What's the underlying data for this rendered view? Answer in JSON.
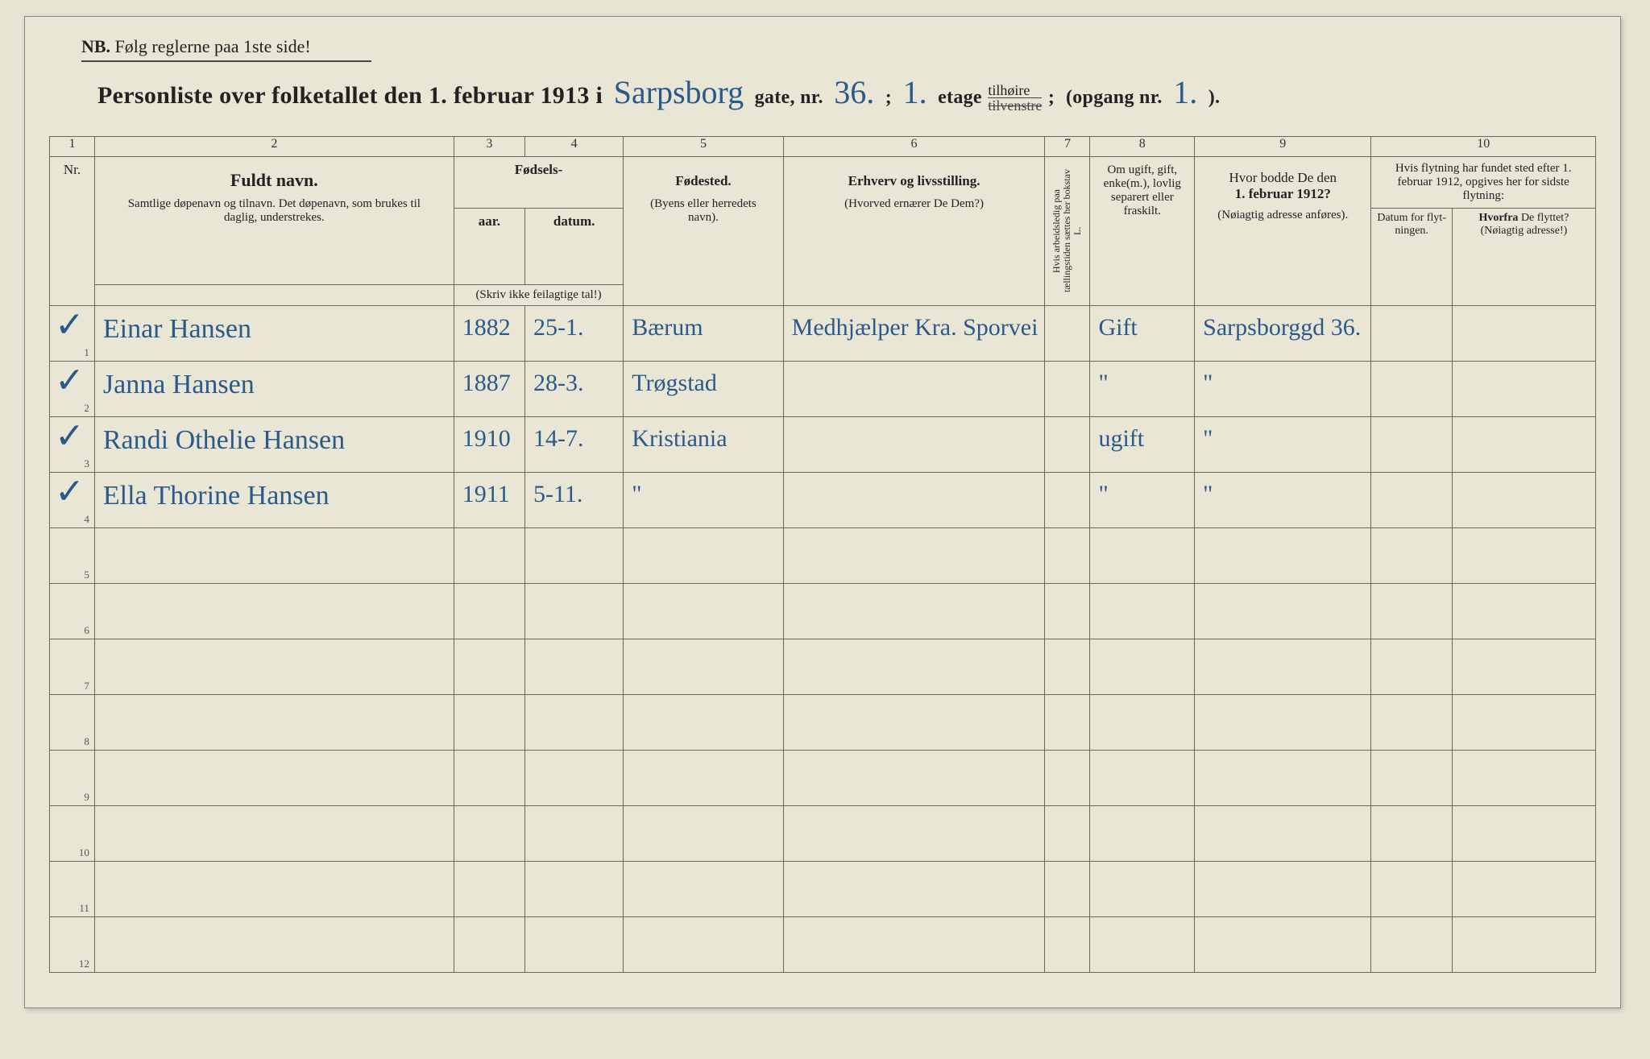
{
  "paper_bg": "#eae6d6",
  "ink": "#333",
  "hand_color": "#2a5a8a",
  "nb_text": "NB.  Følg reglerne paa 1ste side!",
  "header": {
    "lead": "Personliste over folketallet den 1. februar 1913 i",
    "street": "Sarpsborg",
    "gate_lbl": "gate, nr.",
    "gate_nr": "36.",
    "semicolon": ";",
    "etage_nr": "1.",
    "etage_lbl": "etage",
    "tilhore_top": "tilhøire",
    "tilhore_bot": "tilvenstre",
    "opgang_lbl": "(opgang nr.",
    "opgang_nr": "1.",
    "close": ")."
  },
  "colnums": [
    "1",
    "2",
    "3",
    "4",
    "5",
    "6",
    "7",
    "8",
    "9",
    "10"
  ],
  "heads": {
    "nr": "Nr.",
    "navn_title": "Fuldt navn.",
    "navn_sub": "Samtlige døpenavn og tilnavn. Det døpenavn, som brukes til daglig, understrekes.",
    "fodsels": "Fødsels-",
    "aar": "aar.",
    "datum": "datum.",
    "fods_note": "(Skriv ikke feilagtige tal!)",
    "fodested": "Fødested.",
    "fodested_sub": "(Byens eller herredets navn).",
    "erhverv": "Erhverv og livsstilling.",
    "erhverv_sub": "(Hvorved ernærer De Dem?)",
    "col7": "Hvis arbeidsledig paa tællingstiden sættes her bokstav L.",
    "civil": "Om ugift, gift, enke(m.), lovlig separert eller fraskilt.",
    "bodde": "Hvor bodde De den 1. februar 1912?",
    "bodde_sub": "(Nøiagtig adresse anføres).",
    "flyt": "Hvis flytning har fundet sted efter 1. februar 1912, opgives her for sidste flytning:",
    "flyt_a": "Datum for flyt-ningen.",
    "flyt_b": "Hvorfra De flyttet? (Nøiagtig adresse!)"
  },
  "rows": [
    {
      "nr": "1",
      "check": "✓",
      "navn": "Einar Hansen",
      "aar": "1882",
      "datum": "25-1.",
      "sted": "Bærum",
      "erhverv": "Medhjælper Kra. Sporvei",
      "civil": "Gift",
      "bodde": "Sarpsborggd 36."
    },
    {
      "nr": "2",
      "check": "✓",
      "navn": "Janna Hansen",
      "aar": "1887",
      "datum": "28-3.",
      "sted": "Trøgstad",
      "erhverv": "",
      "civil": "\"",
      "bodde": "\""
    },
    {
      "nr": "3",
      "check": "✓",
      "navn": "Randi Othelie Hansen",
      "aar": "1910",
      "datum": "14-7.",
      "sted": "Kristiania",
      "erhverv": "",
      "civil": "ugift",
      "bodde": "\""
    },
    {
      "nr": "4",
      "check": "✓",
      "navn": "Ella Thorine Hansen",
      "aar": "1911",
      "datum": "5-11.",
      "sted": "\"",
      "erhverv": "",
      "civil": "\"",
      "bodde": "\""
    },
    {
      "nr": "5"
    },
    {
      "nr": "6"
    },
    {
      "nr": "7"
    },
    {
      "nr": "8"
    },
    {
      "nr": "9"
    },
    {
      "nr": "10"
    },
    {
      "nr": "11"
    },
    {
      "nr": "12"
    }
  ]
}
